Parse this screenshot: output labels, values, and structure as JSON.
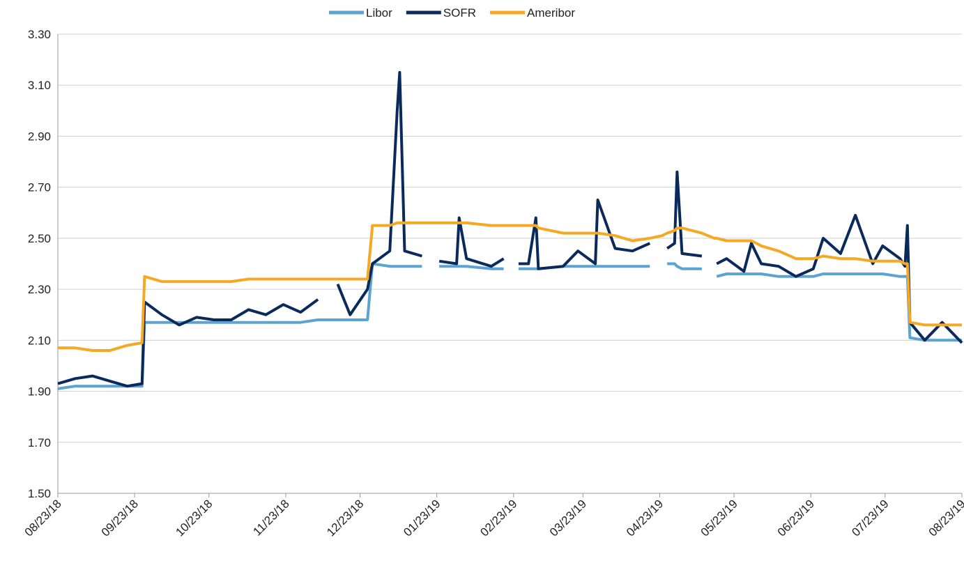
{
  "chart_data": {
    "type": "line",
    "x": [
      "08/23/18",
      "08/30/18",
      "09/06/18",
      "09/13/18",
      "09/20/18",
      "09/26/18",
      "09/27/18",
      "10/04/18",
      "10/11/18",
      "10/18/18",
      "10/25/18",
      "11/01/18",
      "11/08/18",
      "11/15/18",
      "11/22/18",
      "11/29/18",
      "12/06/18",
      "12/11/18",
      "12/14/18",
      "12/19/18",
      "12/26/18",
      "12/28/18",
      "01/04/19",
      "01/07/19",
      "01/08/19",
      "01/10/19",
      "01/17/19",
      "01/21/19",
      "01/24/19",
      "01/31/19",
      "02/01/19",
      "02/04/19",
      "02/14/19",
      "02/19/19",
      "02/21/19",
      "02/25/19",
      "03/01/19",
      "03/04/19",
      "03/05/19",
      "03/15/19",
      "03/21/19",
      "03/28/19",
      "03/29/19",
      "04/05/19",
      "04/12/19",
      "04/19/19",
      "04/24/19",
      "04/26/19",
      "04/29/19",
      "04/30/19",
      "05/02/19",
      "05/10/19",
      "05/15/19",
      "05/16/19",
      "05/20/19",
      "05/27/19",
      "05/30/19",
      "06/03/19",
      "06/10/19",
      "06/17/19",
      "06/24/19",
      "06/28/19",
      "07/05/19",
      "07/11/19",
      "07/18/19",
      "07/22/19",
      "07/29/19",
      "07/31/19",
      "08/01/19",
      "08/02/19",
      "08/08/19",
      "08/15/19",
      "08/23/19"
    ],
    "series": [
      {
        "name": "Libor",
        "color": "#5ba3d0",
        "values": [
          1.91,
          1.92,
          1.92,
          1.92,
          1.92,
          1.92,
          2.17,
          2.17,
          2.17,
          2.17,
          2.17,
          2.17,
          2.17,
          2.17,
          2.17,
          2.17,
          2.18,
          2.18,
          2.18,
          2.18,
          2.18,
          2.4,
          2.39,
          2.39,
          2.39,
          2.39,
          2.39,
          null,
          2.39,
          2.39,
          2.39,
          2.39,
          2.38,
          2.38,
          null,
          2.38,
          2.38,
          2.38,
          2.38,
          2.39,
          2.39,
          2.39,
          2.39,
          2.39,
          2.39,
          2.39,
          null,
          2.4,
          2.4,
          2.39,
          2.38,
          2.38,
          null,
          2.35,
          2.36,
          2.36,
          2.36,
          2.36,
          2.35,
          2.35,
          2.35,
          2.36,
          2.36,
          2.36,
          2.36,
          2.36,
          2.35,
          2.35,
          2.35,
          2.11,
          2.1,
          2.1,
          2.1
        ]
      },
      {
        "name": "SOFR",
        "color": "#0a2a5c",
        "values": [
          1.93,
          1.95,
          1.96,
          1.94,
          1.92,
          1.93,
          2.25,
          2.2,
          2.16,
          2.19,
          2.18,
          2.18,
          2.22,
          2.2,
          2.24,
          2.21,
          2.26,
          null,
          2.32,
          2.2,
          2.3,
          2.4,
          2.45,
          3.0,
          3.15,
          2.45,
          2.43,
          null,
          2.41,
          2.4,
          2.58,
          2.42,
          2.39,
          2.42,
          null,
          2.4,
          2.4,
          2.58,
          2.38,
          2.39,
          2.45,
          2.4,
          2.65,
          2.46,
          2.45,
          2.48,
          null,
          2.46,
          2.48,
          2.76,
          2.44,
          2.43,
          null,
          2.4,
          2.42,
          2.37,
          2.48,
          2.4,
          2.39,
          2.35,
          2.38,
          2.5,
          2.44,
          2.59,
          2.4,
          2.47,
          2.42,
          2.39,
          2.55,
          2.17,
          2.1,
          2.17,
          2.09
        ]
      },
      {
        "name": "Ameribor",
        "color": "#f7a823",
        "values": [
          2.07,
          2.07,
          2.06,
          2.06,
          2.08,
          2.09,
          2.35,
          2.33,
          2.33,
          2.33,
          2.33,
          2.33,
          2.34,
          2.34,
          2.34,
          2.34,
          2.34,
          2.34,
          2.34,
          2.34,
          2.34,
          2.55,
          2.55,
          2.56,
          2.56,
          2.56,
          2.56,
          2.56,
          2.56,
          2.56,
          2.56,
          2.56,
          2.55,
          2.55,
          2.55,
          2.55,
          2.55,
          2.55,
          2.54,
          2.52,
          2.52,
          2.52,
          2.52,
          2.51,
          2.49,
          2.5,
          2.51,
          2.52,
          2.53,
          2.54,
          2.54,
          2.52,
          2.5,
          2.5,
          2.49,
          2.49,
          2.49,
          2.47,
          2.45,
          2.42,
          2.42,
          2.43,
          2.42,
          2.42,
          2.41,
          2.41,
          2.41,
          2.4,
          2.4,
          2.17,
          2.16,
          2.16,
          2.16
        ]
      }
    ],
    "xlim": [
      "08/23/18",
      "08/23/19"
    ],
    "xticks": [
      "08/23/18",
      "09/23/18",
      "10/23/18",
      "11/23/18",
      "12/23/18",
      "01/23/19",
      "02/23/19",
      "03/23/19",
      "04/23/19",
      "05/23/19",
      "06/23/19",
      "07/23/19",
      "08/23/19"
    ],
    "ylim": [
      1.5,
      3.3
    ],
    "yticks": [
      {
        "value": 1.5,
        "label": "1.50"
      },
      {
        "value": 1.7,
        "label": "1.70"
      },
      {
        "value": 1.9,
        "label": "1.90"
      },
      {
        "value": 2.1,
        "label": "2.10"
      },
      {
        "value": 2.3,
        "label": "2.30"
      },
      {
        "value": 2.5,
        "label": "2.50"
      },
      {
        "value": 2.7,
        "label": "2.70"
      },
      {
        "value": 2.9,
        "label": "2.90"
      },
      {
        "value": 3.1,
        "label": "3.10"
      },
      {
        "value": 3.3,
        "label": "3.30"
      }
    ],
    "grid": true,
    "legend": "top"
  }
}
